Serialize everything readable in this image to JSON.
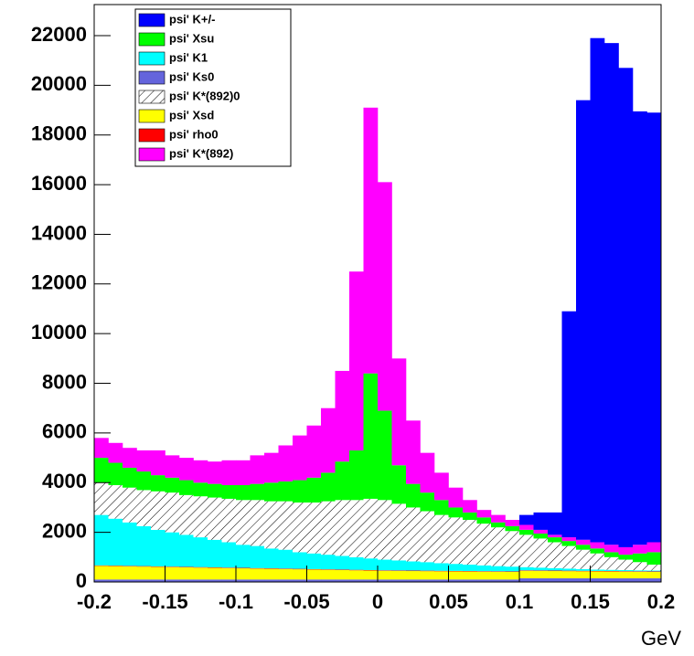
{
  "chart_data": {
    "type": "stacked_histogram",
    "x_label": "GeV",
    "bins": [
      -0.2,
      -0.19,
      -0.18,
      -0.17,
      -0.16,
      -0.15,
      -0.14,
      -0.13,
      -0.12,
      -0.11,
      -0.1,
      -0.09,
      -0.08,
      -0.07,
      -0.06,
      -0.05,
      -0.04,
      -0.03,
      -0.02,
      -0.01,
      0,
      0.01,
      0.02,
      0.03,
      0.04,
      0.05,
      0.06,
      0.07,
      0.08,
      0.09,
      0.1,
      0.11,
      0.12,
      0.13,
      0.14,
      0.15,
      0.16,
      0.17,
      0.18,
      0.19,
      0.2
    ],
    "xlim": [
      -0.2,
      0.2
    ],
    "xticks": [
      -0.2,
      -0.15,
      -0.1,
      -0.05,
      0,
      0.05,
      0.1,
      0.15,
      0.2
    ],
    "ylim": [
      0,
      23250
    ],
    "yticks": [
      0,
      2000,
      4000,
      6000,
      8000,
      10000,
      12000,
      14000,
      16000,
      18000,
      20000,
      22000
    ],
    "stack_order": [
      3,
      5,
      6,
      2,
      4,
      1,
      7,
      0
    ],
    "series": [
      {
        "name": "psi' K+/-",
        "color": "#0000ff",
        "values": [
          0,
          0,
          0,
          0,
          0,
          0,
          0,
          0,
          0,
          0,
          0,
          0,
          0,
          0,
          0,
          0,
          0,
          0,
          0,
          0,
          0,
          0,
          0,
          0,
          0,
          0,
          0,
          0,
          0,
          0,
          400,
          700,
          900,
          9100,
          17700,
          20300,
          20200,
          19300,
          17450,
          17300
        ]
      },
      {
        "name": "psi' Xsu",
        "color": "#00ff00",
        "values": [
          1000,
          900,
          800,
          750,
          650,
          600,
          600,
          550,
          550,
          550,
          600,
          650,
          750,
          800,
          900,
          1000,
          1150,
          1550,
          2000,
          5050,
          3600,
          1550,
          950,
          750,
          600,
          400,
          300,
          250,
          200,
          200,
          200,
          200,
          200,
          200,
          200,
          200,
          200,
          200,
          350,
          500
        ]
      },
      {
        "name": "psi' K1",
        "color": "#00ffff",
        "values": [
          2030,
          1890,
          1750,
          1610,
          1470,
          1380,
          1290,
          1200,
          1110,
          1020,
          930,
          890,
          800,
          760,
          670,
          630,
          590,
          550,
          510,
          470,
          430,
          405,
          370,
          345,
          310,
          285,
          260,
          235,
          210,
          195,
          130,
          115,
          100,
          85,
          70,
          55,
          50,
          45,
          40,
          35
        ]
      },
      {
        "name": "psi' Ks0",
        "color": "#6464dc",
        "values": [
          100,
          100,
          100,
          100,
          100,
          100,
          100,
          100,
          100,
          100,
          100,
          100,
          100,
          100,
          100,
          100,
          100,
          100,
          100,
          100,
          100,
          100,
          100,
          100,
          100,
          100,
          100,
          100,
          100,
          100,
          150,
          150,
          150,
          150,
          150,
          150,
          150,
          150,
          150,
          150
        ]
      },
      {
        "name": "psi' K*(892)0",
        "color": "#000000",
        "pattern": "hatch",
        "values": [
          1300,
          1350,
          1400,
          1450,
          1550,
          1600,
          1600,
          1650,
          1700,
          1750,
          1800,
          1850,
          1900,
          1950,
          2000,
          2050,
          2150,
          2250,
          2300,
          2400,
          2400,
          2280,
          2170,
          2050,
          1940,
          1870,
          1800,
          1680,
          1560,
          1430,
          1300,
          1170,
          1040,
          910,
          780,
          650,
          510,
          420,
          330,
          240
        ]
      },
      {
        "name": "psi' Xsd",
        "color": "#ffff00",
        "values": [
          550,
          540,
          530,
          520,
          510,
          500,
          490,
          480,
          470,
          460,
          450,
          440,
          430,
          420,
          410,
          400,
          390,
          380,
          370,
          360,
          350,
          345,
          340,
          335,
          330,
          325,
          320,
          315,
          310,
          305,
          300,
          295,
          290,
          285,
          280,
          275,
          270,
          265,
          260,
          255
        ]
      },
      {
        "name": "psi' rho0",
        "color": "#ff0000",
        "values": [
          20,
          20,
          20,
          20,
          20,
          20,
          20,
          20,
          20,
          20,
          20,
          20,
          20,
          20,
          20,
          20,
          20,
          20,
          20,
          20,
          20,
          20,
          20,
          20,
          20,
          20,
          20,
          20,
          20,
          20,
          20,
          20,
          20,
          20,
          20,
          20,
          20,
          20,
          20,
          20
        ]
      },
      {
        "name": "psi' K*(892)",
        "color": "#ff00ff",
        "values": [
          800,
          800,
          800,
          850,
          1000,
          900,
          900,
          900,
          900,
          1000,
          1000,
          1150,
          1200,
          1450,
          1800,
          2100,
          2600,
          3650,
          7200,
          10700,
          9200,
          4300,
          2550,
          1600,
          1100,
          800,
          500,
          300,
          300,
          250,
          200,
          150,
          100,
          150,
          200,
          250,
          300,
          300,
          350,
          400
        ]
      }
    ]
  }
}
